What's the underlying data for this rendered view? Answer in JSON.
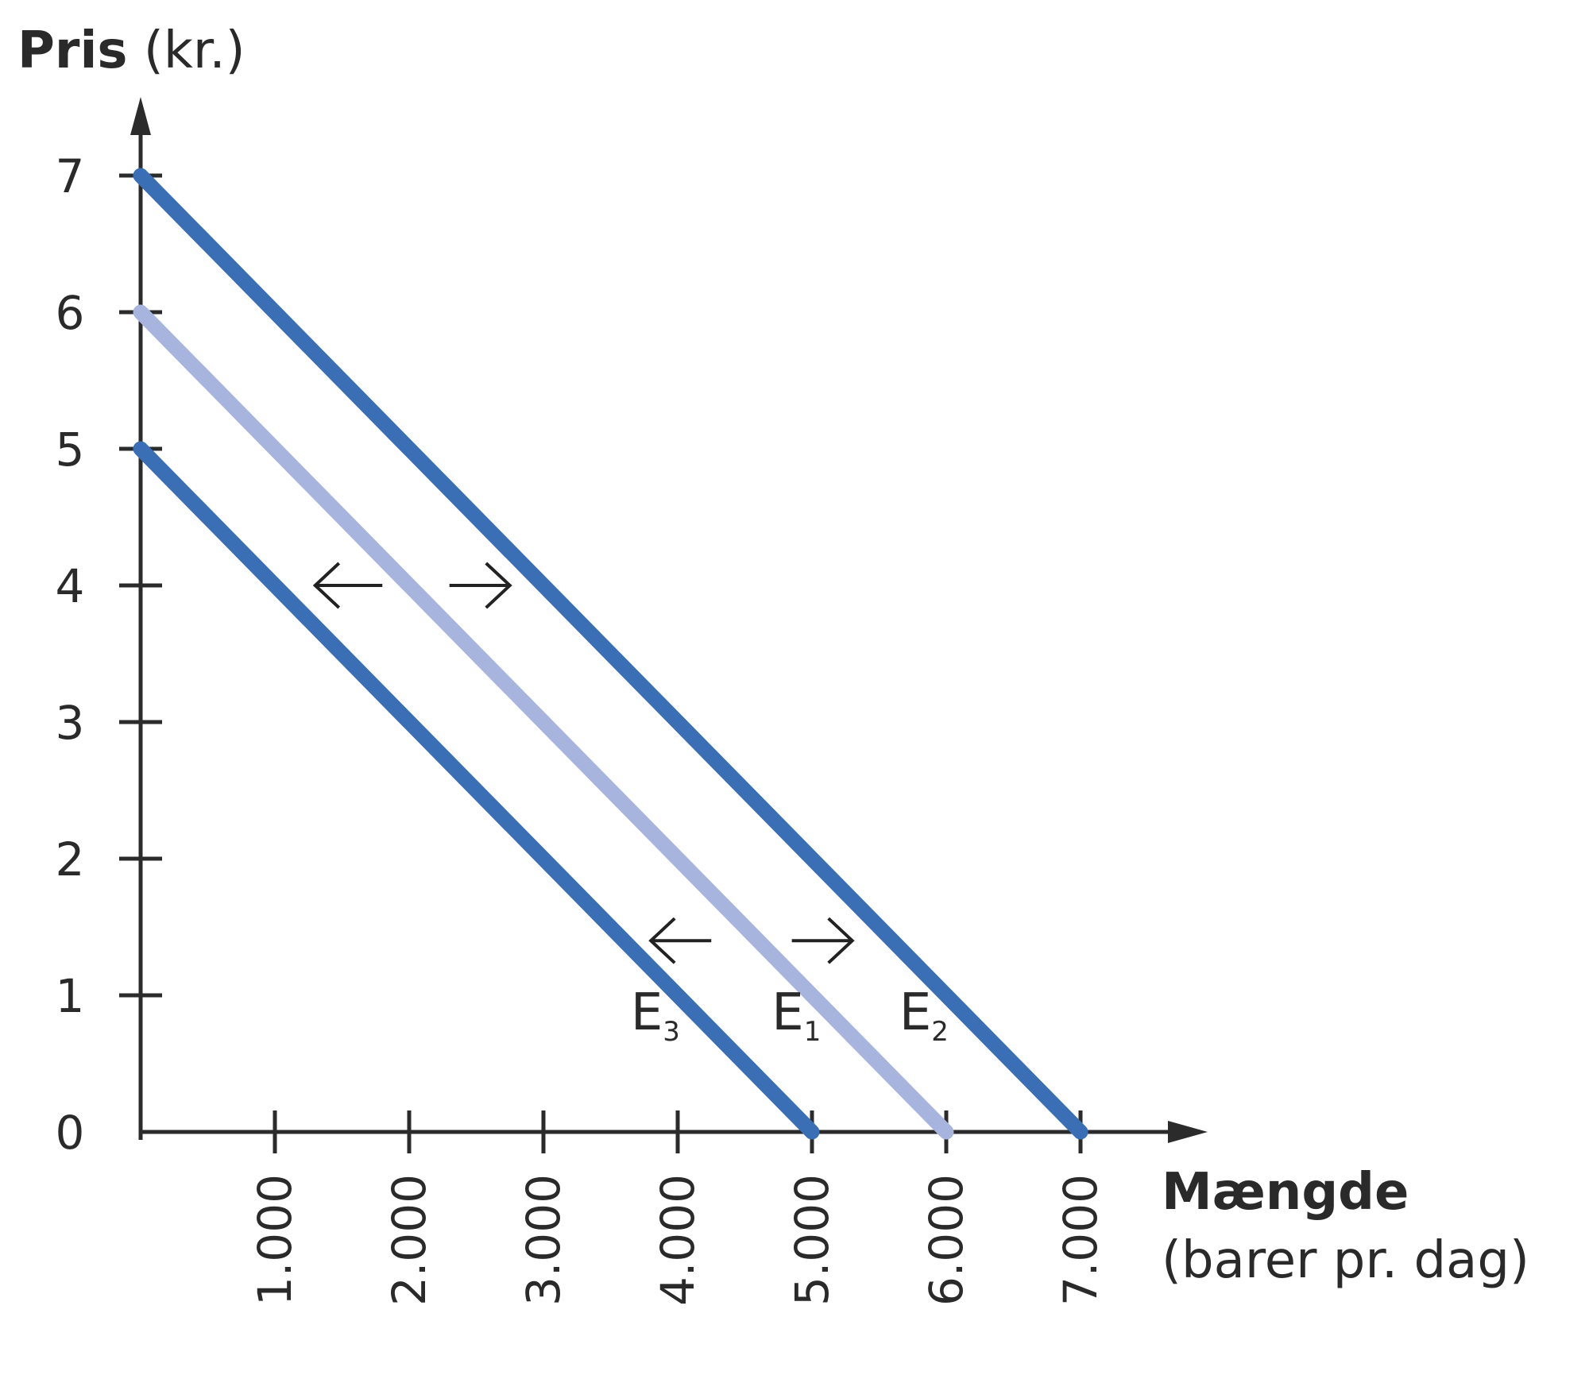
{
  "chart_data": {
    "type": "line",
    "ylabel_bold": "Pris",
    "ylabel_unit": "(kr.)",
    "xlabel_bold": "Mængde",
    "xlabel_unit": "(barer pr. dag)",
    "xlim": [
      0,
      7000
    ],
    "ylim": [
      0,
      7
    ],
    "x_ticks": [
      1000,
      2000,
      3000,
      4000,
      5000,
      6000,
      7000
    ],
    "x_tick_labels": [
      "1.000",
      "2.000",
      "3.000",
      "4.000",
      "5.000",
      "6.000",
      "7.000"
    ],
    "y_ticks": [
      0,
      1,
      2,
      3,
      4,
      5,
      6,
      7
    ],
    "y_tick_labels": [
      "0",
      "1",
      "2",
      "3",
      "4",
      "5",
      "6",
      "7"
    ],
    "grid": false,
    "series": [
      {
        "name": "E",
        "sub": "1",
        "points": [
          [
            0,
            6
          ],
          [
            6000,
            0
          ]
        ],
        "color": "#a7b4de"
      },
      {
        "name": "E",
        "sub": "2",
        "points": [
          [
            0,
            7
          ],
          [
            7000,
            0
          ]
        ],
        "color": "#3a6eb5"
      },
      {
        "name": "E",
        "sub": "3",
        "points": [
          [
            0,
            5
          ],
          [
            5000,
            0
          ]
        ],
        "color": "#3a6eb5"
      }
    ],
    "annotations": [
      {
        "type": "arrow",
        "direction": "left",
        "x": [
          1300,
          1800
        ],
        "y": 4
      },
      {
        "type": "arrow",
        "direction": "right",
        "x": [
          2300,
          2750
        ],
        "y": 4
      },
      {
        "type": "arrow",
        "direction": "left",
        "x": [
          3800,
          4250
        ],
        "y": 1.4
      },
      {
        "type": "arrow",
        "direction": "right",
        "x": [
          4850,
          5300
        ],
        "y": 1.4
      }
    ]
  }
}
